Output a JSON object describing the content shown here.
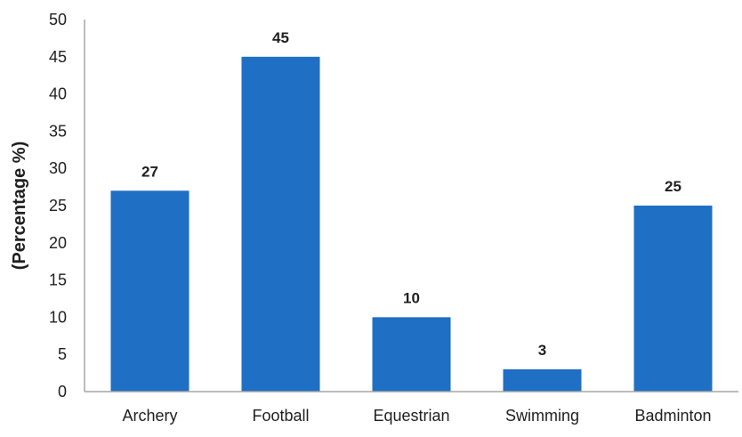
{
  "chart_data": {
    "type": "bar",
    "categories": [
      "Archery",
      "Football",
      "Equestrian",
      "Swimming",
      "Badminton"
    ],
    "values": [
      27,
      45,
      10,
      3,
      25
    ],
    "data_labels": [
      "27",
      "45",
      "10",
      "3",
      "25"
    ],
    "title": "",
    "xlabel": "",
    "ylabel": "(Percentage %)",
    "ylim": [
      0,
      50
    ],
    "yticks": [
      0,
      5,
      10,
      15,
      20,
      25,
      30,
      35,
      40,
      45,
      50
    ],
    "grid": false,
    "legend": "none",
    "bar_color": "#1f6fc4"
  }
}
